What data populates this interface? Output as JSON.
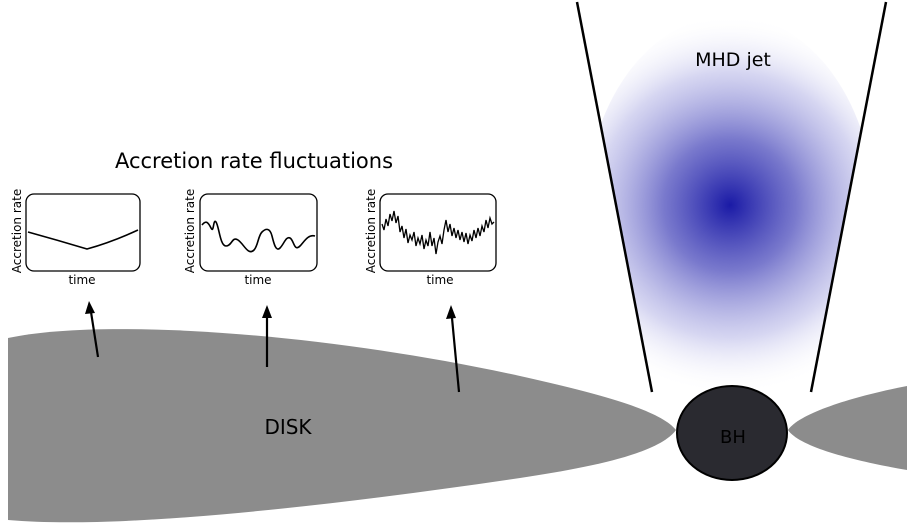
{
  "title": "Accretion rate fluctuations",
  "jet_label": "MHD jet",
  "disk_label": "DISK",
  "bh_label": "BH",
  "panels": [
    {
      "ylabel": "Accretion rate",
      "xlabel": "time",
      "signal": "smooth"
    },
    {
      "ylabel": "Accretion rate",
      "xlabel": "time",
      "signal": "wavy"
    },
    {
      "ylabel": "Accretion rate",
      "xlabel": "time",
      "signal": "noisy"
    }
  ],
  "colors": {
    "disk": "#8c8c8c",
    "bh": "#2a2a30",
    "jet_core": "#1a1aa6",
    "outline": "#000000"
  }
}
